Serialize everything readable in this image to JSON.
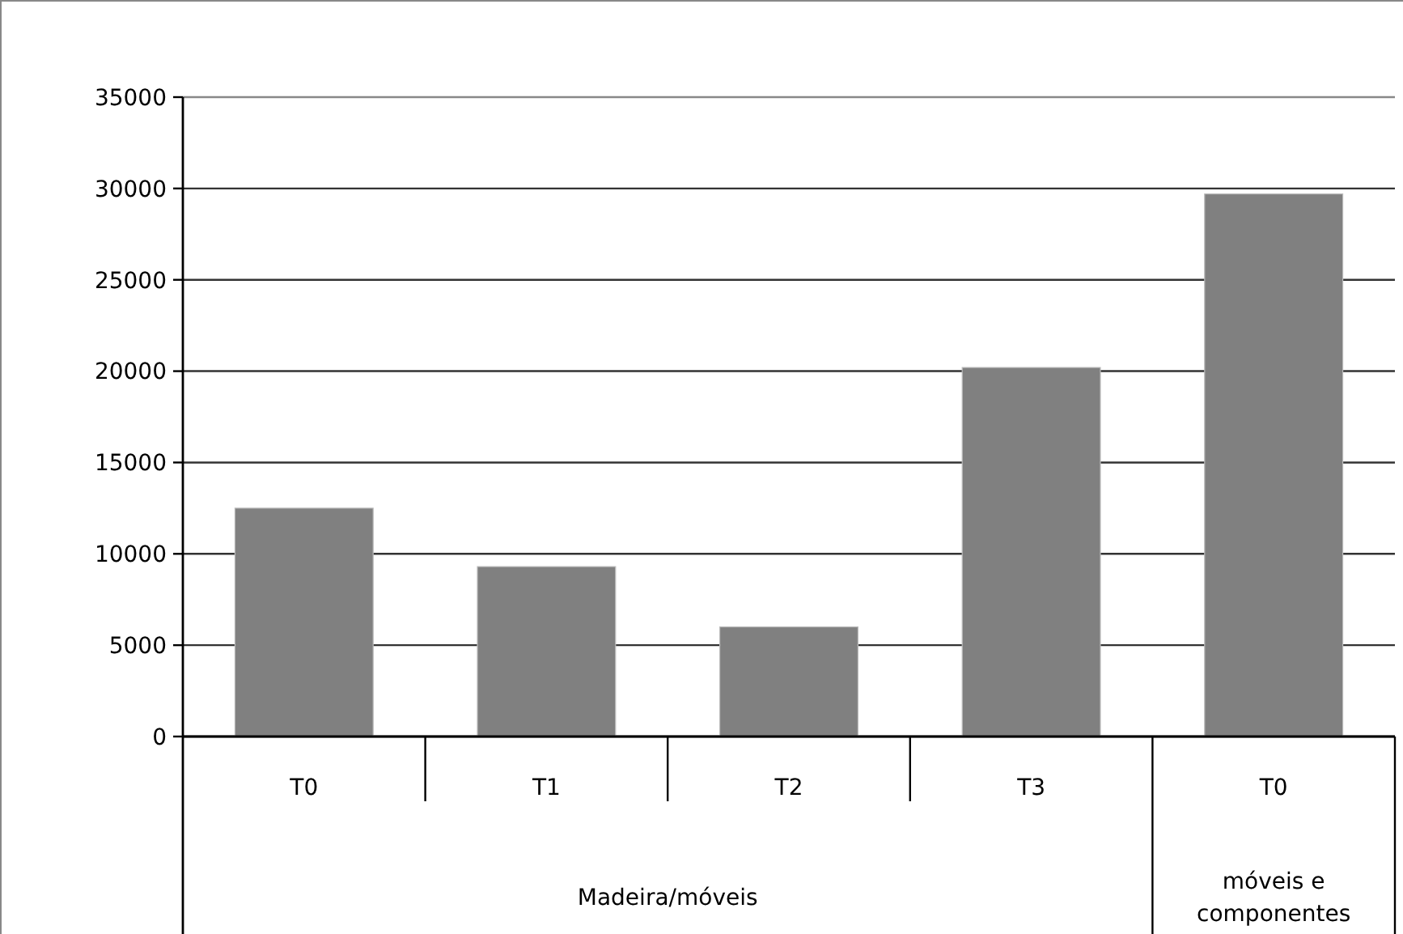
{
  "chart_data": {
    "type": "bar",
    "categories": [
      "T0",
      "T1",
      "T2",
      "T3",
      "T0"
    ],
    "values": [
      12500,
      9300,
      6000,
      20200,
      29700
    ],
    "color": "#808080",
    "ylim": [
      0,
      35000
    ],
    "yticks": [
      0,
      5000,
      10000,
      15000,
      20000,
      25000,
      30000,
      35000
    ],
    "grid": "y",
    "annotations": [
      "Madeira/móveis",
      "móveis e componentes"
    ]
  }
}
